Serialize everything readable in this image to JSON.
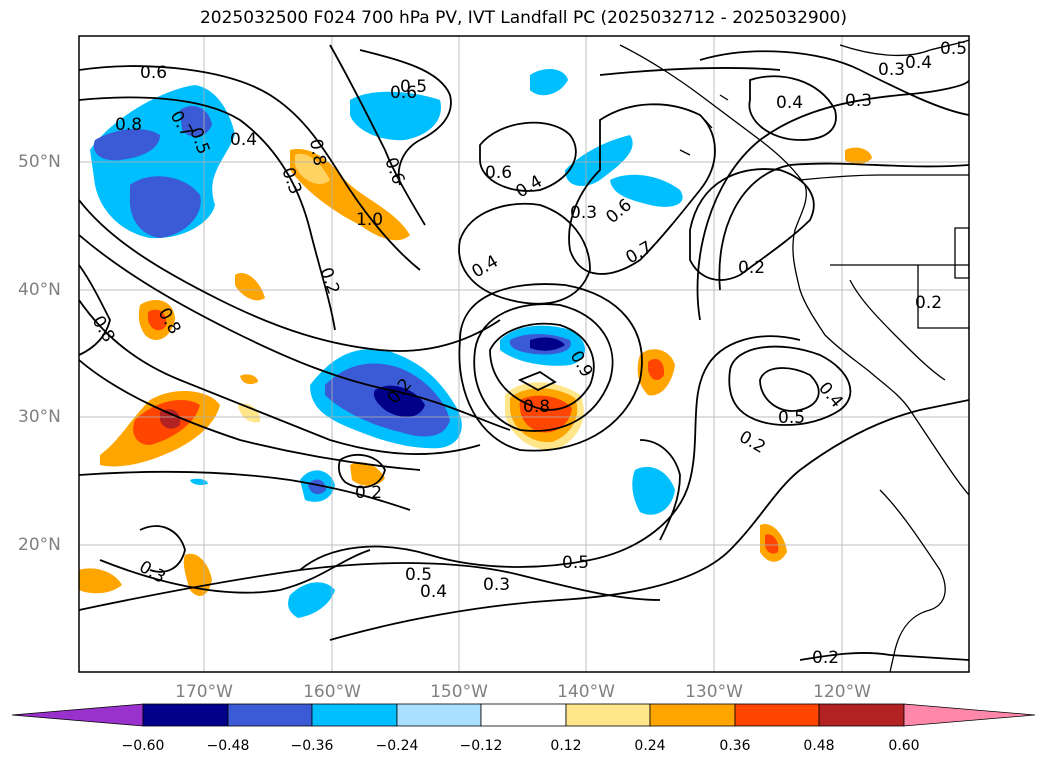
{
  "title": "2025032500 F024 700 hPa PV, IVT Landfall PC (2025032712 - 2025032900)",
  "lat_labels": [
    "50°N",
    "40°N",
    "30°N",
    "20°N"
  ],
  "lon_labels": [
    "170°W",
    "160°W",
    "150°W",
    "140°W",
    "130°W",
    "120°W"
  ],
  "contour_labels": [
    "0.6",
    "0.7",
    "0.8",
    "0.5",
    "0.4",
    "0.6",
    "0.5",
    "0.8",
    "0.3",
    "1.0",
    "0.6",
    "0.5",
    "0.4",
    "0.3",
    "0.4",
    "0.3",
    "0.4",
    "0.3",
    "0.6",
    "0.7",
    "0.4",
    "0.2",
    "0.6",
    "0.8",
    "0.2",
    "0.8",
    "0.9",
    "0.2",
    "0.2",
    "0.5",
    "0.4",
    "0.8",
    "0.5",
    "0.4",
    "0.3",
    "0.3",
    "0.2",
    "0.5",
    "0.2",
    "0.2"
  ],
  "colorbar": {
    "colors": [
      "#9932cc",
      "#00008b",
      "#3b5bd6",
      "#00bfff",
      "#aadfff",
      "#ffffff",
      "#ffe68a",
      "#ffa500",
      "#ff4500",
      "#b22222",
      "#ff88aa"
    ],
    "ticks": [
      "−0.60",
      "−0.48",
      "−0.36",
      "−0.24",
      "−0.12",
      "0.12",
      "0.24",
      "0.36",
      "0.48",
      "0.60"
    ]
  }
}
